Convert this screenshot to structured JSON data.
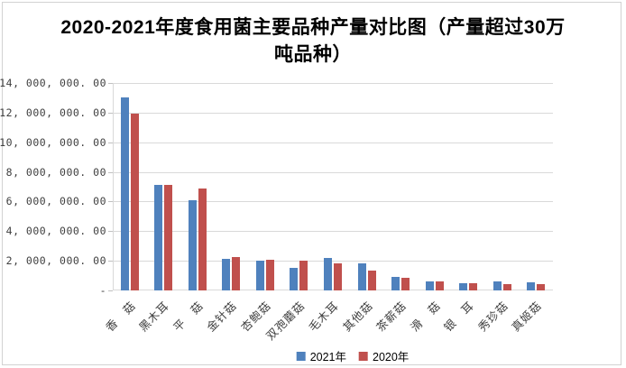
{
  "window": {
    "background": "#ffffff",
    "frame_border_color": "#d2d2d2"
  },
  "chart_data": {
    "type": "bar",
    "title": "2020-2021年度食用菌主要品种产量对比图（产量超过30万吨品种）",
    "categories": [
      "香　菇",
      "黑木耳",
      "平　菇",
      "金针菇",
      "杏鲍菇",
      "双孢蘑菇",
      "毛木耳",
      "其他菇",
      "茶薪菇",
      "滑　菇",
      "银　耳",
      "秀珍菇",
      "真姬菇"
    ],
    "series": [
      {
        "name": "2021年",
        "color": "#4F81BD",
        "values": [
          13000000,
          7100000,
          6100000,
          2100000,
          2000000,
          1550000,
          2200000,
          1800000,
          900000,
          600000,
          500000,
          590000,
          550000
        ]
      },
      {
        "name": "2020年",
        "color": "#C0504D",
        "values": [
          11900000,
          7100000,
          6900000,
          2250000,
          2050000,
          2000000,
          1800000,
          1350000,
          880000,
          630000,
          500000,
          450000,
          410000
        ]
      }
    ],
    "xlabel": "",
    "ylabel": "",
    "ylim": [
      0,
      14000000
    ],
    "y_tick_interval": 2000000,
    "y_tick_labels": [
      "-",
      "2, 000, 000. 00",
      "4, 000, 000. 00",
      "6, 000, 000. 00",
      "8, 000, 000. 00",
      "10, 000, 000. 00",
      "12, 000, 000. 00",
      "14, 000, 000. 00"
    ],
    "grid": "horizontal",
    "gridline_color": "#d9d9d9",
    "axis_text_color": "#3f3f3f",
    "legend_position": "bottom"
  }
}
